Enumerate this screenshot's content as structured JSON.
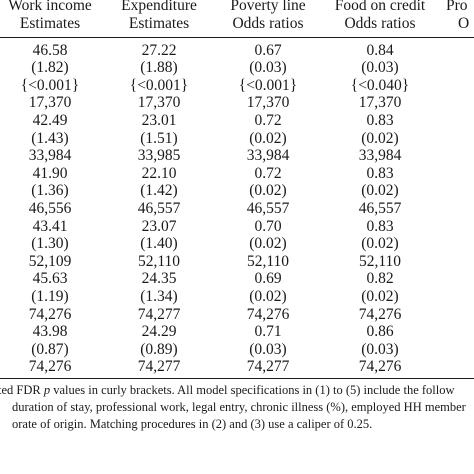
{
  "columns": [
    {
      "line1": "Work income",
      "line2": "Estimates"
    },
    {
      "line1": "Expenditure",
      "line2": "Estimates"
    },
    {
      "line1": "Poverty line",
      "line2": "Odds ratios"
    },
    {
      "line1": "Food on credit",
      "line2": "Odds ratios"
    },
    {
      "line1": "Pro",
      "line2": "O"
    }
  ],
  "rows": [
    [
      "46.58",
      "27.22",
      "0.67",
      "0.84"
    ],
    [
      "(1.82)",
      "(1.88)",
      "(0.03)",
      "(0.03)"
    ],
    [
      "{<0.001}",
      "{<0.001}",
      "{<0.001}",
      "{<0.040}"
    ],
    [
      "17,370",
      "17,370",
      "17,370",
      "17,370"
    ],
    [
      "42.49",
      "23.01",
      "0.72",
      "0.83"
    ],
    [
      "(1.43)",
      "(1.51)",
      "(0.02)",
      "(0.02)"
    ],
    [
      "33,984",
      "33,985",
      "33,984",
      "33,984"
    ],
    [
      "41.90",
      "22.10",
      "0.72",
      "0.83"
    ],
    [
      "(1.36)",
      "(1.42)",
      "(0.02)",
      "(0.02)"
    ],
    [
      "46,556",
      "46,557",
      "46,557",
      "46,557"
    ],
    [
      "43.41",
      "23.07",
      "0.70",
      "0.83"
    ],
    [
      "(1.30)",
      "(1.40)",
      "(0.02)",
      "(0.02)"
    ],
    [
      "52,109",
      "52,110",
      "52,110",
      "52,110"
    ],
    [
      "45.63",
      "24.35",
      "0.69",
      "0.82"
    ],
    [
      "(1.19)",
      "(1.34)",
      "(0.02)",
      "(0.02)"
    ],
    [
      "74,276",
      "74,277",
      "74,276",
      "74,276"
    ],
    [
      "43.98",
      "24.29",
      "0.71",
      "0.86"
    ],
    [
      "(0.87)",
      "(0.89)",
      "(0.03)",
      "(0.03)"
    ],
    [
      "74,276",
      "74,277",
      "74,277",
      "74,276"
    ]
  ],
  "notes": {
    "line1_before": "ted FDR ",
    "line1_italic": "p",
    "line1_after": " values in curly brackets. All model specifications in (1) to (5) include the follow",
    "line2": "duration of stay, professional work, legal entry, chronic illness (%), employed HH member",
    "line3": "orate of origin. Matching procedures in (2) and (3) use a caliper of 0.25."
  }
}
